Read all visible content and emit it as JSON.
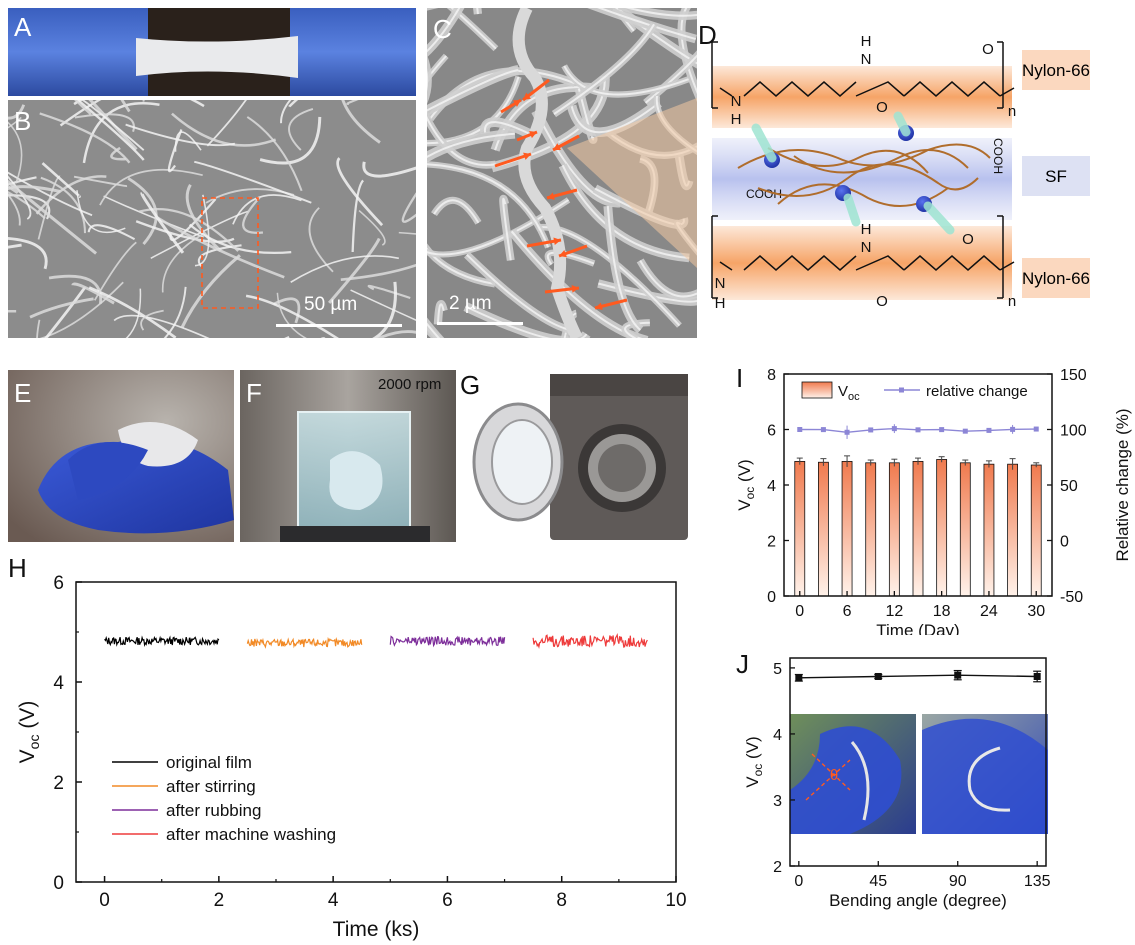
{
  "panels": {
    "A": {
      "label": "A"
    },
    "B": {
      "label": "B",
      "scale_bar": "50 µm"
    },
    "C": {
      "label": "C",
      "scale_bar": "2 µm"
    },
    "D": {
      "label": "D",
      "atoms": {
        "H": "H",
        "N": "N",
        "O": "O",
        "n": "n",
        "cooh": "COOH"
      },
      "legend": [
        "Nylon-66",
        "SF",
        "Nylon-66"
      ]
    },
    "E": {
      "label": "E"
    },
    "F": {
      "label": "F",
      "caption": "2000 rpm"
    },
    "G": {
      "label": "G"
    },
    "H": {
      "label": "H"
    },
    "I": {
      "label": "I"
    },
    "J": {
      "label": "J",
      "theta": "θ"
    }
  },
  "colors": {
    "orange_band": "#f6a467",
    "blue_band": "#c9cff0",
    "chain": "#b06d2c",
    "bead": "#3046c8",
    "hbond": "#9fe4d2",
    "arrow": "#ff5a1f",
    "bar_top": "#f07a4e",
    "bar_bottom": "#fff2ea",
    "relative_line": "#8c86d6"
  },
  "chart_data": [
    {
      "panel": "H",
      "type": "line",
      "xlabel": "Time (ks)",
      "ylabel": "V",
      "ylabel_sub": "oc",
      "ylabel_unit": " (V)",
      "xlim": [
        -0.5,
        10
      ],
      "ylim": [
        0,
        6
      ],
      "xticks": [
        "0",
        "2",
        "4",
        "6",
        "8",
        "10"
      ],
      "yticks": [
        "0",
        "2",
        "4",
        "6"
      ],
      "series": [
        {
          "name": "original film",
          "color": "#000000",
          "x_range": [
            0,
            2
          ],
          "mean": 4.82,
          "amplitude": 0.08
        },
        {
          "name": "after stirring",
          "color": "#f28a26",
          "x_range": [
            2.5,
            4.5
          ],
          "mean": 4.78,
          "amplitude": 0.08
        },
        {
          "name": "after rubbing",
          "color": "#7d2e9a",
          "x_range": [
            5,
            7
          ],
          "mean": 4.82,
          "amplitude": 0.09
        },
        {
          "name": "after machine washing",
          "color": "#ee3b3b",
          "x_range": [
            7.5,
            9.5
          ],
          "mean": 4.82,
          "amplitude": 0.12
        }
      ]
    },
    {
      "panel": "I",
      "type": "bar",
      "xlabel": "Time (Day)",
      "ylabel": "V",
      "ylabel_sub": "oc",
      "ylabel_unit": " (V)",
      "y2label": "Relative change (%)",
      "x": [
        0,
        3,
        6,
        9,
        12,
        15,
        18,
        21,
        24,
        27,
        30
      ],
      "xticks": [
        "0",
        "6",
        "12",
        "18",
        "24",
        "30"
      ],
      "values": [
        4.85,
        4.82,
        4.85,
        4.8,
        4.8,
        4.85,
        4.92,
        4.8,
        4.75,
        4.75,
        4.72
      ],
      "errors": [
        0.12,
        0.13,
        0.2,
        0.1,
        0.13,
        0.12,
        0.1,
        0.1,
        0.12,
        0.2,
        0.08
      ],
      "relative_change": [
        100,
        99.9,
        97.5,
        99.6,
        100.8,
        99.7,
        99.9,
        98.5,
        99.2,
        100.1,
        100.4
      ],
      "relative_errors": [
        2,
        2,
        6,
        2,
        4,
        2,
        1,
        1,
        2,
        4,
        1
      ],
      "ylim": [
        0,
        8
      ],
      "yticks": [
        "0",
        "2",
        "4",
        "6",
        "8"
      ],
      "y2lim": [
        -50,
        150
      ],
      "y2ticks": [
        "-50",
        "0",
        "50",
        "100",
        "150"
      ],
      "legend": {
        "bar": "V",
        "bar_sub": "oc",
        "line": "relative change"
      }
    },
    {
      "panel": "J",
      "type": "line",
      "xlabel": "Bending angle (degree)",
      "ylabel": "V",
      "ylabel_sub": "oc",
      "ylabel_unit": " (V)",
      "x": [
        0,
        45,
        90,
        135
      ],
      "values": [
        4.85,
        4.87,
        4.89,
        4.87
      ],
      "errors": [
        0.05,
        0.03,
        0.07,
        0.08
      ],
      "xticks": [
        "0",
        "45",
        "90",
        "135"
      ],
      "yticks": [
        "2",
        "3",
        "4",
        "5"
      ],
      "ylim": [
        2,
        5.15
      ],
      "xlim": [
        -5,
        140
      ]
    }
  ]
}
